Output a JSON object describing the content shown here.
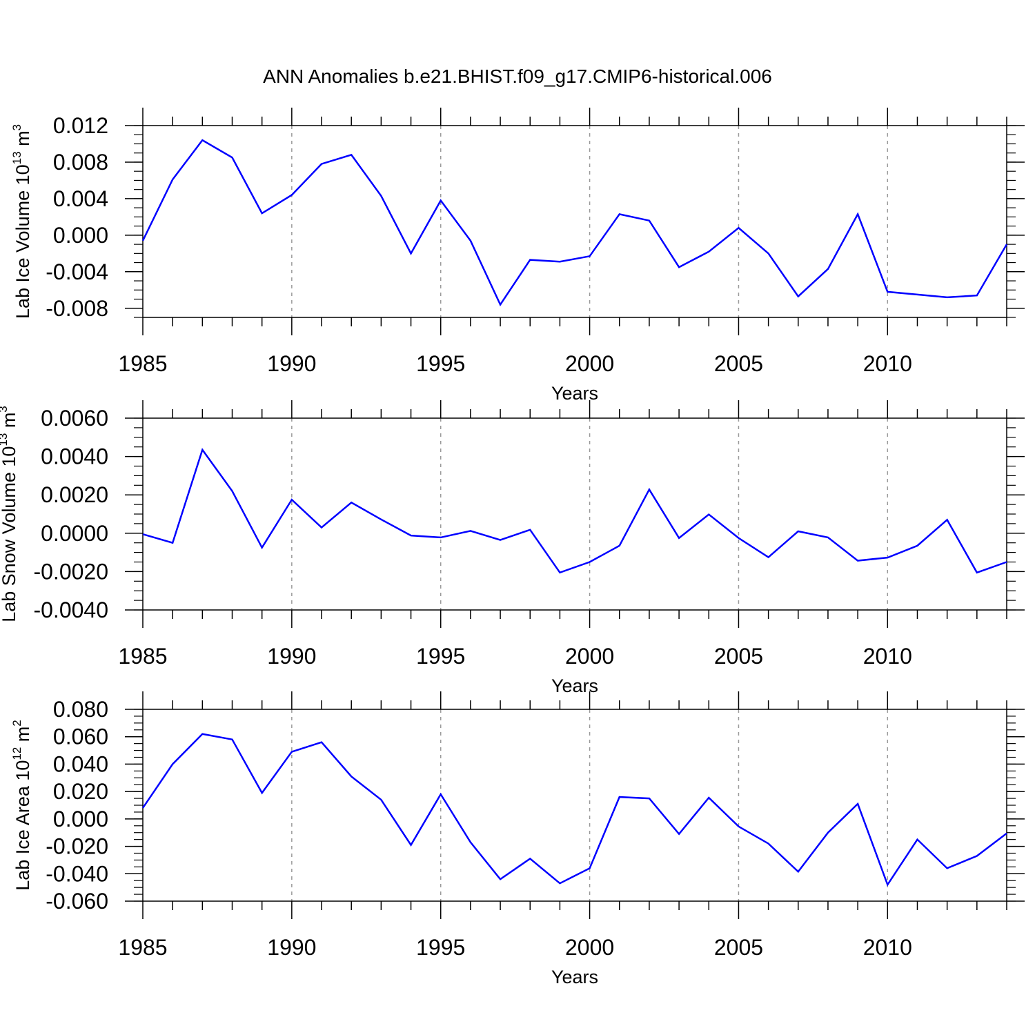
{
  "title": "ANN Anomalies b.e21.BHIST.f09_g17.CMIP6-historical.006",
  "chart_data": [
    {
      "type": "line",
      "title": "ANN Anomalies b.e21.BHIST.f09_g17.CMIP6-historical.006",
      "xlabel": "Years",
      "ylabel": {
        "base": "Lab Ice Volume 10",
        "exp": "13",
        "unit": " m",
        "unit_exp": "3"
      },
      "x": [
        1985,
        1986,
        1987,
        1988,
        1989,
        1990,
        1991,
        1992,
        1993,
        1994,
        1995,
        1996,
        1997,
        1998,
        1999,
        2000,
        2001,
        2002,
        2003,
        2004,
        2005,
        2006,
        2007,
        2008,
        2009,
        2010,
        2011,
        2012,
        2013,
        2014
      ],
      "series": [
        {
          "name": "Lab Ice Volume",
          "color": "#0000ff",
          "values": [
            -0.0006,
            0.0061,
            0.0104,
            0.0085,
            0.0024,
            0.0044,
            0.0078,
            0.0088,
            0.0043,
            -0.002,
            0.0038,
            -0.0006,
            -0.0076,
            -0.0027,
            -0.0029,
            -0.0023,
            0.0023,
            0.0016,
            -0.0035,
            -0.0018,
            0.0008,
            -0.002,
            -0.0067,
            -0.0037,
            0.0023,
            -0.0062,
            -0.0065,
            -0.0068,
            -0.0066,
            -0.001
          ]
        }
      ],
      "xlim": [
        1985,
        2014
      ],
      "ylim": [
        -0.009,
        0.012
      ],
      "xticks": [
        "1985",
        "1990",
        "1995",
        "2000",
        "2005",
        "2010"
      ],
      "yticks": [
        "0.012",
        "0.008",
        "0.004",
        "0.000",
        "-0.004",
        "-0.008"
      ],
      "ytick_values": [
        0.012,
        0.008,
        0.004,
        0.0,
        -0.004,
        -0.008
      ],
      "grid": "vertical dashed at major x ticks"
    },
    {
      "type": "line",
      "xlabel": "Years",
      "ylabel": {
        "base": "Lab Snow Volume 10",
        "exp": "13",
        "unit": " m",
        "unit_exp": "3"
      },
      "x": [
        1985,
        1986,
        1987,
        1988,
        1989,
        1990,
        1991,
        1992,
        1993,
        1994,
        1995,
        1996,
        1997,
        1998,
        1999,
        2000,
        2001,
        2002,
        2003,
        2004,
        2005,
        2006,
        2007,
        2008,
        2009,
        2010,
        2011,
        2012,
        2013,
        2014
      ],
      "series": [
        {
          "name": "Lab Snow Volume",
          "color": "#0000ff",
          "values": [
            -5e-05,
            -0.0005,
            0.00435,
            0.0022,
            -0.00075,
            0.00175,
            0.0003,
            0.0016,
            0.00072,
            -0.00012,
            -0.00022,
            0.00012,
            -0.00035,
            0.00018,
            -0.00205,
            -0.0015,
            -0.00065,
            0.00228,
            -0.00025,
            0.00098,
            -0.00025,
            -0.00125,
            0.0001,
            -0.00022,
            -0.00143,
            -0.00127,
            -0.00065,
            0.0007,
            -0.00205,
            -0.0015
          ]
        }
      ],
      "xlim": [
        1985,
        2014
      ],
      "ylim": [
        -0.004,
        0.006
      ],
      "xticks": [
        "1985",
        "1990",
        "1995",
        "2000",
        "2005",
        "2010"
      ],
      "yticks": [
        "0.0060",
        "0.0040",
        "0.0020",
        "0.0000",
        "-0.0020",
        "-0.0040"
      ],
      "ytick_values": [
        0.006,
        0.004,
        0.002,
        0.0,
        -0.002,
        -0.004
      ],
      "grid": "vertical dashed at major x ticks"
    },
    {
      "type": "line",
      "xlabel": "Years",
      "ylabel": {
        "base": "Lab Ice Area 10",
        "exp": "12",
        "unit": " m",
        "unit_exp": "2"
      },
      "x": [
        1985,
        1986,
        1987,
        1988,
        1989,
        1990,
        1991,
        1992,
        1993,
        1994,
        1995,
        1996,
        1997,
        1998,
        1999,
        2000,
        2001,
        2002,
        2003,
        2004,
        2005,
        2006,
        2007,
        2008,
        2009,
        2010,
        2011,
        2012,
        2013,
        2014
      ],
      "series": [
        {
          "name": "Lab Ice Area",
          "color": "#0000ff",
          "values": [
            0.008,
            0.04,
            0.062,
            0.058,
            0.019,
            0.049,
            0.056,
            0.031,
            0.014,
            -0.019,
            0.018,
            -0.017,
            -0.044,
            -0.029,
            -0.047,
            -0.036,
            0.016,
            0.015,
            -0.011,
            0.0155,
            -0.0055,
            -0.018,
            -0.0385,
            -0.01,
            0.011,
            -0.048,
            -0.015,
            -0.036,
            -0.027,
            -0.0105
          ]
        }
      ],
      "xlim": [
        1985,
        2014
      ],
      "ylim": [
        -0.06,
        0.08
      ],
      "xticks": [
        "1985",
        "1990",
        "1995",
        "2000",
        "2005",
        "2010"
      ],
      "yticks": [
        "0.080",
        "0.060",
        "0.040",
        "0.020",
        "0.000",
        "-0.020",
        "-0.040",
        "-0.060"
      ],
      "ytick_values": [
        0.08,
        0.06,
        0.04,
        0.02,
        0.0,
        -0.02,
        -0.04,
        -0.06
      ],
      "grid": "vertical dashed at major x ticks"
    }
  ]
}
